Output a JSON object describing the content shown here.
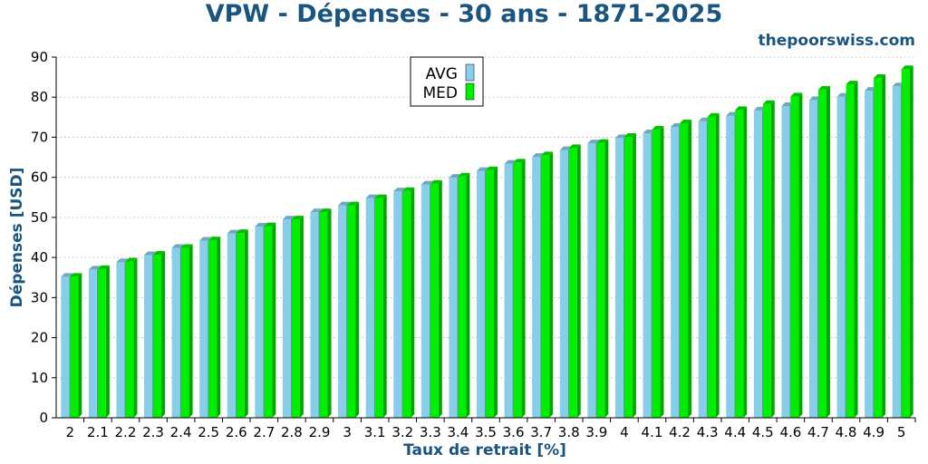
{
  "chart_data": {
    "type": "bar",
    "title": "VPW - Dépenses - 30 ans - 1871-2025",
    "source_label": "thepoorswiss.com",
    "xlabel": "Taux de retrait [%]",
    "ylabel": "Dépenses [USD]",
    "ylim": [
      0,
      90
    ],
    "yticks": [
      0,
      10,
      20,
      30,
      40,
      50,
      60,
      70,
      80,
      90
    ],
    "grid": "horizontal dotted",
    "legend_position": "top-center",
    "categories": [
      "2",
      "2.1",
      "2.2",
      "2.3",
      "2.4",
      "2.5",
      "2.6",
      "2.7",
      "2.8",
      "2.9",
      "3",
      "3.1",
      "3.2",
      "3.3",
      "3.4",
      "3.5",
      "3.6",
      "3.7",
      "3.8",
      "3.9",
      "4",
      "4.1",
      "4.2",
      "4.3",
      "4.4",
      "4.5",
      "4.6",
      "4.7",
      "4.8",
      "4.9",
      "5"
    ],
    "series": [
      {
        "name": "AVG",
        "color": "#87ceeb",
        "values": [
          35.2,
          37.0,
          38.8,
          40.6,
          42.4,
          44.2,
          46.0,
          47.7,
          49.5,
          51.3,
          53.0,
          54.8,
          56.5,
          58.2,
          59.9,
          61.6,
          63.4,
          65.1,
          66.8,
          68.5,
          69.8,
          71.0,
          72.6,
          74.0,
          75.4,
          76.7,
          77.8,
          79.3,
          80.1,
          81.6,
          82.7
        ]
      },
      {
        "name": "MED",
        "color": "#00ee00",
        "values": [
          35.2,
          37.1,
          39.0,
          40.7,
          42.4,
          44.3,
          46.1,
          47.8,
          49.5,
          51.3,
          53.0,
          54.8,
          56.6,
          58.4,
          60.2,
          61.8,
          63.7,
          65.5,
          67.3,
          68.6,
          70.1,
          71.9,
          73.5,
          75.1,
          76.8,
          78.3,
          80.2,
          81.9,
          83.2,
          84.8,
          87.0
        ]
      }
    ]
  }
}
